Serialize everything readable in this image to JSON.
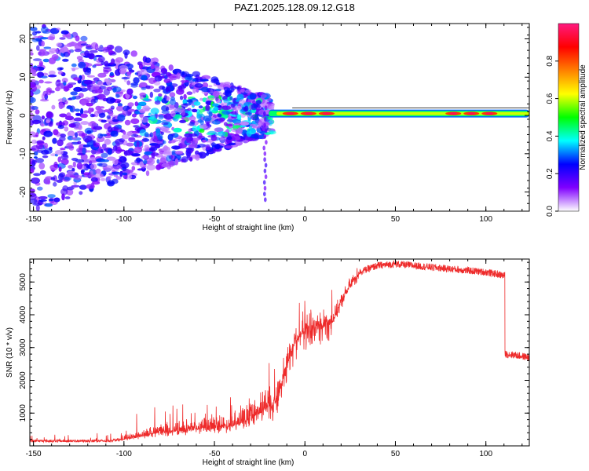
{
  "title": "PAZ1.2025.128.09.12.G18",
  "chart_data": [
    {
      "type": "heatmap",
      "xlabel": "Height of straight line (km)",
      "ylabel": "Frequency (Hz)",
      "xlim": [
        -152,
        124
      ],
      "ylim": [
        -25,
        24
      ],
      "xticks": [
        -150,
        -100,
        -50,
        0,
        50,
        100
      ],
      "yticks": [
        -20,
        -10,
        0,
        10,
        20
      ],
      "colorbar": {
        "label": "Normalized spectral amplitude",
        "range": [
          0,
          1
        ],
        "ticks": [
          "0.0",
          "0.2",
          "0.4",
          "0.6",
          "0.8"
        ],
        "colormap": [
          "#ffffff",
          "#8000ff",
          "#0000ff",
          "#00ffff",
          "#00ff00",
          "#ffff00",
          "#ff8000",
          "#ff0000",
          "#ff1a80"
        ]
      },
      "description_values": {
        "scatter_region_km": [
          -152,
          -20
        ],
        "coherent_line_start_km": -20,
        "coherent_line_frequency_hz": 0.5
      },
      "grid": false
    },
    {
      "type": "line",
      "xlabel": "Height of straight line (km)",
      "ylabel": "SNR (10 * v/v)",
      "xlim": [
        -152,
        124
      ],
      "ylim": [
        0,
        5700
      ],
      "xticks": [
        -150,
        -100,
        -50,
        0,
        50,
        100
      ],
      "yticks": [
        1000,
        2000,
        3000,
        4000,
        5000
      ],
      "color": "#ee2a2a",
      "profile": {
        "x": [
          -152,
          -110,
          -100,
          -90,
          -80,
          -70,
          -60,
          -50,
          -40,
          -30,
          -25,
          -20,
          -15,
          -10,
          -5,
          0,
          5,
          10,
          15,
          20,
          25,
          30,
          40,
          50,
          60,
          70,
          80,
          90,
          100,
          110,
          111,
          115,
          124
        ],
        "y": [
          150,
          150,
          200,
          300,
          400,
          450,
          500,
          550,
          600,
          800,
          1000,
          1200,
          1500,
          2500,
          3300,
          3500,
          3600,
          3700,
          3800,
          4400,
          4900,
          5300,
          5500,
          5550,
          5500,
          5450,
          5400,
          5350,
          5300,
          5200,
          2800,
          2780,
          2700
        ]
      },
      "grid": false
    }
  ]
}
